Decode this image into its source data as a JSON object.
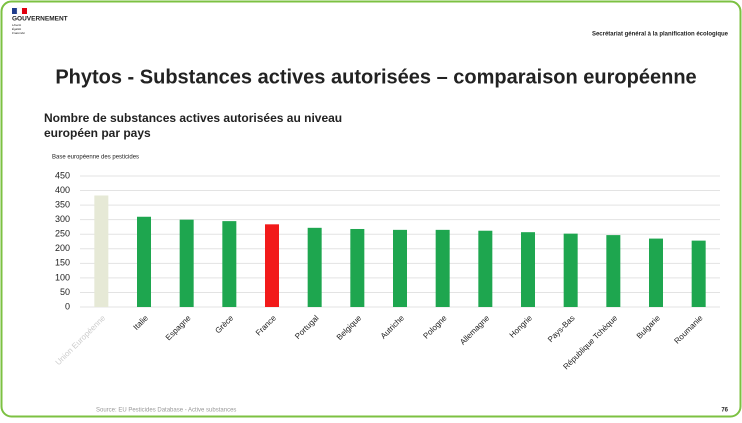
{
  "slide": {
    "logo": "GOUVERNEMENT",
    "motto": [
      "Liberté",
      "Égalité",
      "Fraternité"
    ],
    "header": "Secrétariat général à la planification écologique",
    "title": "Phytos - Substances actives autorisées – comparaison européenne",
    "source": "Source: EU Pesticides Database - Active substances",
    "page": "76"
  },
  "chart_data": {
    "type": "bar",
    "title": [
      "Nombre de substances actives autorisées au niveau",
      "européen par pays"
    ],
    "subtitle": "Base européenne des pesticides",
    "categories": [
      "Union Européenne",
      "Italie",
      "Espagne",
      "Grèce",
      "France",
      "Portugal",
      "Belgique",
      "Autriche",
      "Pologne",
      "Allemagne",
      "Hongrie",
      "Pays-Bas",
      "République Tchèque",
      "Bulgarie",
      "Roumanie"
    ],
    "values": [
      383,
      310,
      300,
      295,
      284,
      272,
      268,
      265,
      265,
      262,
      257,
      252,
      247,
      235,
      228
    ],
    "colors": [
      "#e6e9d6",
      "#1ea64f",
      "#1ea64f",
      "#1ea64f",
      "#f21a1a",
      "#1ea64f",
      "#1ea64f",
      "#1ea64f",
      "#1ea64f",
      "#1ea64f",
      "#1ea64f",
      "#1ea64f",
      "#1ea64f",
      "#1ea64f",
      "#1ea64f"
    ],
    "ylim": [
      0,
      450
    ],
    "yticks": [
      0,
      50,
      100,
      150,
      200,
      250,
      300,
      350,
      400,
      450
    ],
    "grid": true
  }
}
